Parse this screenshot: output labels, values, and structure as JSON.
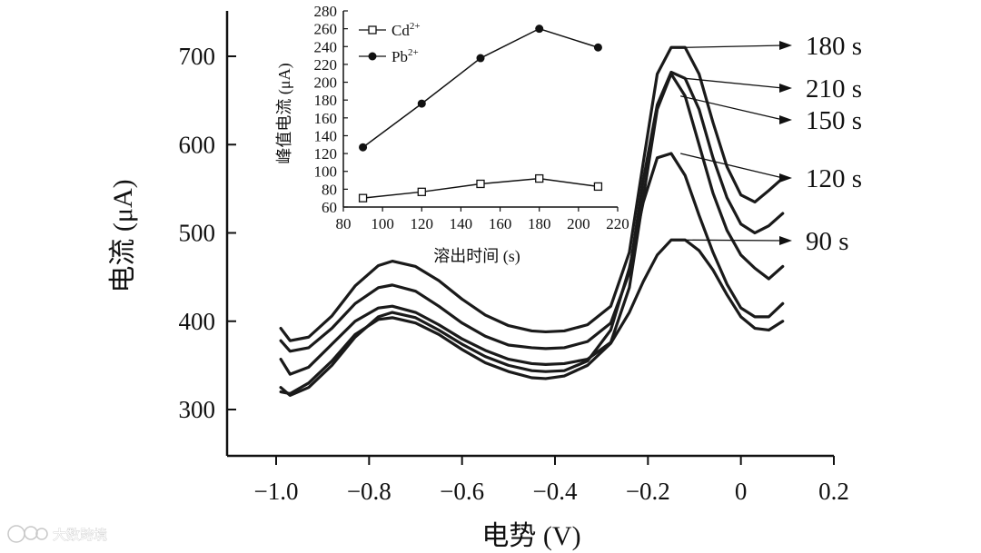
{
  "chart_data": [
    {
      "type": "line",
      "title": "",
      "xlabel": "电势 (V)",
      "ylabel": "电流 (μA)",
      "xlim": [
        -1.1,
        0.2
      ],
      "ylim": [
        250,
        760
      ],
      "xticks": [
        -1.0,
        -0.8,
        -0.6,
        -0.4,
        -0.2,
        0,
        0.2
      ],
      "xtick_labels": [
        "−1.0",
        "−0.8",
        "−0.6",
        "−0.4",
        "−0.2",
        "0",
        "0.2"
      ],
      "yticks": [
        300,
        400,
        500,
        600,
        700
      ],
      "ytick_labels": [
        "300",
        "400",
        "500",
        "600",
        "700"
      ],
      "grid": false,
      "series": [
        {
          "name": "90 s",
          "x": [
            -0.99,
            -0.97,
            -0.93,
            -0.88,
            -0.83,
            -0.78,
            -0.75,
            -0.7,
            -0.65,
            -0.6,
            -0.55,
            -0.5,
            -0.45,
            -0.42,
            -0.38,
            -0.33,
            -0.28,
            -0.24,
            -0.21,
            -0.18,
            -0.15,
            -0.12,
            -0.09,
            -0.06,
            -0.03,
            0.0,
            0.03,
            0.06,
            0.09
          ],
          "y": [
            320,
            318,
            330,
            355,
            385,
            402,
            404,
            398,
            385,
            368,
            353,
            343,
            336,
            335,
            338,
            350,
            375,
            410,
            445,
            475,
            492,
            492,
            480,
            458,
            430,
            405,
            392,
            390,
            400
          ]
        },
        {
          "name": "120 s",
          "x": [
            -0.99,
            -0.97,
            -0.93,
            -0.88,
            -0.83,
            -0.78,
            -0.75,
            -0.7,
            -0.65,
            -0.6,
            -0.55,
            -0.5,
            -0.45,
            -0.42,
            -0.38,
            -0.33,
            -0.28,
            -0.24,
            -0.21,
            -0.18,
            -0.15,
            -0.12,
            -0.09,
            -0.06,
            -0.03,
            0.0,
            0.03,
            0.06,
            0.09
          ],
          "y": [
            325,
            316,
            325,
            350,
            382,
            405,
            410,
            404,
            390,
            374,
            360,
            350,
            344,
            343,
            344,
            355,
            390,
            460,
            535,
            585,
            590,
            565,
            520,
            478,
            442,
            415,
            405,
            405,
            420
          ]
        },
        {
          "name": "150 s",
          "x": [
            -0.99,
            -0.97,
            -0.93,
            -0.88,
            -0.83,
            -0.78,
            -0.75,
            -0.7,
            -0.65,
            -0.6,
            -0.55,
            -0.5,
            -0.45,
            -0.42,
            -0.38,
            -0.33,
            -0.28,
            -0.24,
            -0.21,
            -0.18,
            -0.15,
            -0.12,
            -0.09,
            -0.06,
            -0.03,
            0.0,
            0.03,
            0.06,
            0.09
          ],
          "y": [
            357,
            340,
            348,
            374,
            400,
            415,
            417,
            410,
            396,
            380,
            367,
            357,
            352,
            351,
            352,
            357,
            376,
            438,
            540,
            640,
            680,
            655,
            600,
            545,
            503,
            475,
            460,
            448,
            462
          ]
        },
        {
          "name": "180 s",
          "x": [
            -0.99,
            -0.97,
            -0.93,
            -0.88,
            -0.83,
            -0.78,
            -0.75,
            -0.7,
            -0.65,
            -0.6,
            -0.55,
            -0.5,
            -0.45,
            -0.42,
            -0.38,
            -0.33,
            -0.28,
            -0.24,
            -0.21,
            -0.18,
            -0.15,
            -0.12,
            -0.09,
            -0.06,
            -0.03,
            0.0,
            0.03,
            0.06,
            0.09
          ],
          "y": [
            392,
            378,
            382,
            406,
            440,
            463,
            468,
            462,
            446,
            425,
            407,
            395,
            389,
            388,
            389,
            396,
            417,
            478,
            580,
            680,
            710,
            710,
            680,
            625,
            575,
            543,
            535,
            548,
            562
          ]
        },
        {
          "name": "210 s",
          "x": [
            -0.99,
            -0.97,
            -0.93,
            -0.88,
            -0.83,
            -0.78,
            -0.75,
            -0.7,
            -0.65,
            -0.6,
            -0.55,
            -0.5,
            -0.45,
            -0.42,
            -0.38,
            -0.33,
            -0.28,
            -0.24,
            -0.21,
            -0.18,
            -0.15,
            -0.12,
            -0.09,
            -0.06,
            -0.03,
            0.0,
            0.03,
            0.06,
            0.09
          ],
          "y": [
            378,
            366,
            370,
            392,
            420,
            438,
            441,
            434,
            417,
            398,
            383,
            373,
            370,
            369,
            370,
            377,
            398,
            455,
            560,
            645,
            682,
            675,
            640,
            585,
            540,
            510,
            500,
            508,
            522
          ]
        }
      ],
      "annotations": [
        {
          "text": "180 s",
          "x": -0.12,
          "y": 710
        },
        {
          "text": "210 s",
          "x": -0.12,
          "y": 675
        },
        {
          "text": "150 s",
          "x": -0.13,
          "y": 655
        },
        {
          "text": "120 s",
          "x": -0.13,
          "y": 590
        },
        {
          "text": "90 s",
          "x": -0.12,
          "y": 492
        }
      ]
    },
    {
      "type": "line",
      "title": "",
      "xlabel": "溶出时间 (s)",
      "ylabel": "峰值电流 (μA)",
      "xlim": [
        80,
        220
      ],
      "ylim": [
        60,
        280
      ],
      "xticks": [
        80,
        100,
        120,
        140,
        160,
        180,
        200,
        220
      ],
      "xtick_labels": [
        "80",
        "100",
        "120",
        "140",
        "160",
        "180",
        "200",
        "220"
      ],
      "yticks": [
        60,
        80,
        100,
        120,
        140,
        160,
        180,
        200,
        220,
        240,
        260,
        280
      ],
      "ytick_labels": [
        "60",
        "80",
        "100",
        "120",
        "140",
        "160",
        "180",
        "200",
        "220",
        "240",
        "260",
        "280"
      ],
      "legend": "top-left",
      "series": [
        {
          "name": "Cd",
          "sup": "2+",
          "marker": "square-open",
          "x": [
            90,
            120,
            150,
            180,
            210
          ],
          "y": [
            70,
            77,
            86,
            92,
            83
          ]
        },
        {
          "name": "Pb",
          "sup": "2+",
          "marker": "circle-filled",
          "x": [
            90,
            120,
            150,
            180,
            210
          ],
          "y": [
            127,
            176,
            227,
            260,
            239
          ]
        }
      ]
    }
  ],
  "watermark": {
    "icon": "logo-badge-icon",
    "text": "大数跨境"
  }
}
